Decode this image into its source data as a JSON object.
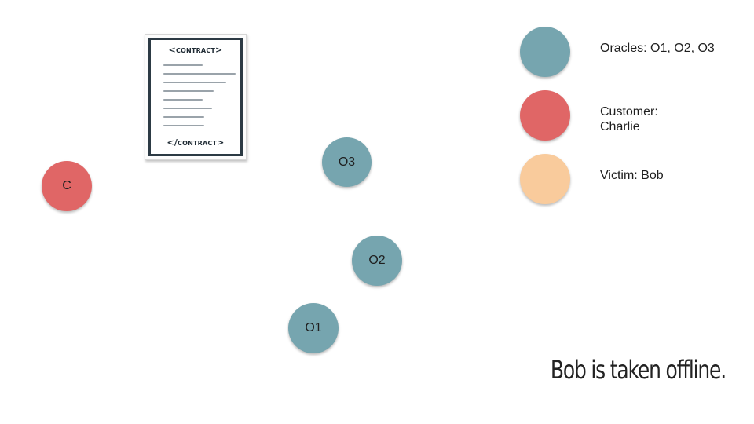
{
  "contract": {
    "open_tag": "<contract>",
    "close_tag": "</contract>"
  },
  "nodes": {
    "customer": {
      "label": "C",
      "color": "#e06666"
    },
    "o3": {
      "label": "O3",
      "color": "#76a5af"
    },
    "o2": {
      "label": "O2",
      "color": "#76a5af"
    },
    "o1": {
      "label": "O1",
      "color": "#76a5af"
    }
  },
  "legend": [
    {
      "label": "Oracles: O1, O2, O3",
      "color": "#76a5af"
    },
    {
      "label": "Customer: Charlie",
      "color": "#e06666"
    },
    {
      "label": "Victim: Bob",
      "color": "#f9cb9c"
    }
  ],
  "caption": "Bob is taken offline."
}
